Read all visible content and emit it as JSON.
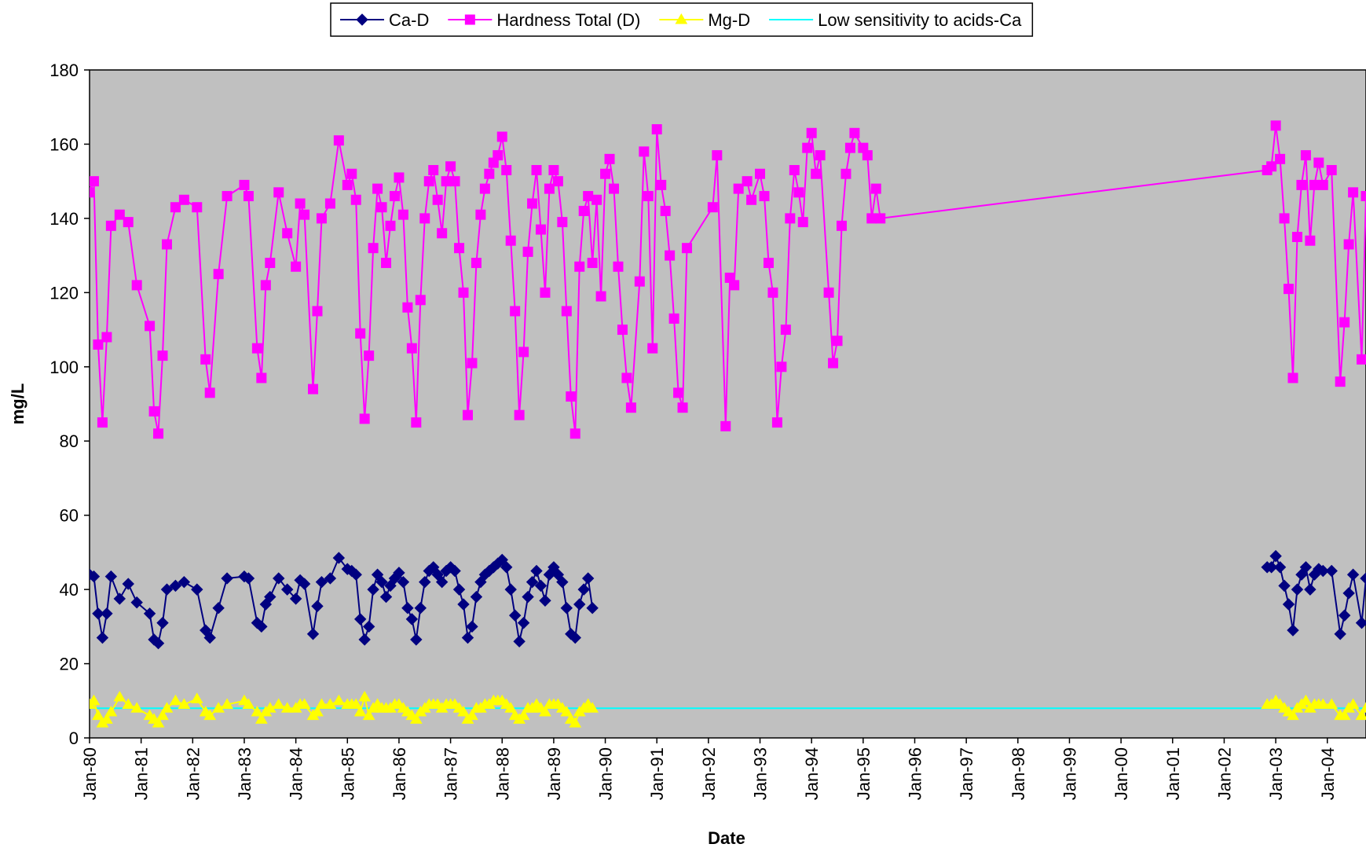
{
  "chart_data": {
    "type": "line",
    "x_label": "Date",
    "y_label": "mg/L",
    "x": [
      "1980-01",
      "1980-02",
      "1980-03",
      "1980-04",
      "1980-05",
      "1980-06",
      "1980-08",
      "1980-10",
      "1980-12",
      "1981-03",
      "1981-04",
      "1981-05",
      "1981-06",
      "1981-07",
      "1981-09",
      "1981-11",
      "1982-02",
      "1982-04",
      "1982-05",
      "1982-07",
      "1982-09",
      "1983-01",
      "1983-02",
      "1983-04",
      "1983-05",
      "1983-06",
      "1983-07",
      "1983-09",
      "1983-11",
      "1984-01",
      "1984-02",
      "1984-03",
      "1984-05",
      "1984-06",
      "1984-07",
      "1984-09",
      "1984-11",
      "1985-01",
      "1985-02",
      "1985-03",
      "1985-04",
      "1985-05",
      "1985-06",
      "1985-07",
      "1985-08",
      "1985-09",
      "1985-10",
      "1985-11",
      "1985-12",
      "1986-01",
      "1986-02",
      "1986-03",
      "1986-04",
      "1986-05",
      "1986-06",
      "1986-07",
      "1986-08",
      "1986-09",
      "1986-10",
      "1986-11",
      "1986-12",
      "1987-01",
      "1987-02",
      "1987-03",
      "1987-04",
      "1987-05",
      "1987-06",
      "1987-07",
      "1987-08",
      "1987-09",
      "1987-10",
      "1987-11",
      "1987-12",
      "1988-01",
      "1988-02",
      "1988-03",
      "1988-04",
      "1988-05",
      "1988-06",
      "1988-07",
      "1988-08",
      "1988-09",
      "1988-10",
      "1988-11",
      "1988-12",
      "1989-01",
      "1989-02",
      "1989-03",
      "1989-04",
      "1989-05",
      "1989-06",
      "1989-07",
      "1989-08",
      "1989-09",
      "1989-10",
      "1989-11",
      "1989-12",
      "1990-01",
      "1990-02",
      "1990-03",
      "1990-04",
      "1990-05",
      "1990-06",
      "1990-07",
      "1990-09",
      "1990-10",
      "1990-11",
      "1990-12",
      "1991-01",
      "1991-02",
      "1991-03",
      "1991-04",
      "1991-05",
      "1991-06",
      "1991-07",
      "1991-08",
      "1992-02",
      "1992-03",
      "1992-05",
      "1992-06",
      "1992-07",
      "1992-08",
      "1992-10",
      "1992-11",
      "1993-01",
      "1993-02",
      "1993-03",
      "1993-04",
      "1993-05",
      "1993-06",
      "1993-07",
      "1993-08",
      "1993-09",
      "1993-10",
      "1993-11",
      "1993-12",
      "1994-01",
      "1994-02",
      "1994-03",
      "1994-05",
      "1994-06",
      "1994-07",
      "1994-08",
      "1994-09",
      "1994-10",
      "1994-11",
      "1995-01",
      "1995-02",
      "1995-03",
      "1995-04",
      "1995-05",
      "2002-11",
      "2002-12",
      "2003-01",
      "2003-02",
      "2003-03",
      "2003-04",
      "2003-05",
      "2003-06",
      "2003-07",
      "2003-08",
      "2003-09",
      "2003-10",
      "2003-11",
      "2003-12",
      "2004-02",
      "2004-04",
      "2004-05",
      "2004-06",
      "2004-07",
      "2004-09",
      "2004-10"
    ],
    "series": [
      {
        "name": "Ca-D",
        "color": "#000080",
        "marker": "diamond",
        "values": [
          44,
          43.5,
          33.5,
          27,
          33.5,
          43.5,
          37.5,
          41.5,
          36.5,
          33.5,
          26.5,
          25.5,
          31,
          40,
          41,
          42,
          40,
          29,
          27,
          35,
          43,
          43.5,
          43,
          31,
          30,
          36,
          38,
          43,
          40,
          37.5,
          42.5,
          41.5,
          28,
          35.5,
          42,
          43,
          48.5,
          45.5,
          45,
          44,
          32,
          26.5,
          30,
          40,
          44,
          42,
          38,
          41,
          43,
          44.5,
          42,
          35,
          32,
          26.5,
          35,
          42,
          45,
          46,
          44,
          42,
          45,
          46,
          45,
          40,
          36,
          27,
          30,
          38,
          42,
          44,
          45,
          46,
          47,
          48,
          46,
          40,
          33,
          26,
          31,
          38,
          42,
          45,
          41,
          37,
          44,
          46,
          44,
          42,
          35,
          28,
          27,
          36,
          40,
          43,
          35,
          null,
          null,
          null,
          null,
          null,
          null,
          null,
          null,
          null,
          null,
          null,
          null,
          null,
          null,
          null,
          null,
          null,
          null,
          null,
          null,
          null,
          null,
          null,
          null,
          null,
          null,
          null,
          null,
          null,
          null,
          null,
          null,
          null,
          null,
          null,
          null,
          null,
          null,
          null,
          null,
          null,
          null,
          null,
          null,
          null,
          null,
          null,
          null,
          null,
          null,
          null,
          null,
          null,
          null,
          null,
          null,
          46,
          46,
          49,
          46,
          41,
          36,
          29,
          40,
          44,
          46,
          40,
          44,
          45.5,
          45,
          45,
          28,
          33,
          39,
          44,
          31,
          43
        ]
      },
      {
        "name": "Hardness Total (D)",
        "color": "#ff00ff",
        "marker": "square",
        "values": [
          147,
          150,
          106,
          85,
          108,
          138,
          141,
          139,
          122,
          111,
          88,
          82,
          103,
          133,
          143,
          145,
          143,
          102,
          93,
          125,
          146,
          149,
          146,
          105,
          97,
          122,
          128,
          147,
          136,
          127,
          144,
          141,
          94,
          115,
          140,
          144,
          161,
          149,
          152,
          145,
          109,
          86,
          103,
          132,
          148,
          143,
          128,
          138,
          146,
          151,
          141,
          116,
          105,
          85,
          118,
          140,
          150,
          153,
          145,
          136,
          150,
          154,
          150,
          132,
          120,
          87,
          101,
          128,
          141,
          148,
          152,
          155,
          157,
          162,
          153,
          134,
          115,
          87,
          104,
          131,
          144,
          153,
          137,
          120,
          148,
          153,
          150,
          139,
          115,
          92,
          82,
          127,
          142,
          146,
          128,
          145,
          119,
          152,
          156,
          148,
          127,
          110,
          97,
          89,
          123,
          158,
          146,
          105,
          164,
          149,
          142,
          130,
          113,
          93,
          89,
          132,
          143,
          157,
          84,
          124,
          122,
          148,
          150,
          145,
          152,
          146,
          128,
          120,
          85,
          100,
          110,
          140,
          153,
          147,
          139,
          159,
          163,
          152,
          157,
          120,
          101,
          107,
          138,
          152,
          159,
          163,
          159,
          157,
          140,
          148,
          140,
          153,
          154,
          165,
          156,
          140,
          121,
          97,
          135,
          149,
          157,
          134,
          149,
          155,
          149,
          153,
          96,
          112,
          133,
          147,
          102,
          146
        ]
      },
      {
        "name": "Mg-D",
        "color": "#ffff00",
        "marker": "triangle",
        "values": [
          9,
          10,
          6,
          4,
          5,
          7,
          11,
          9,
          8,
          6,
          5,
          4,
          6,
          8,
          10,
          9,
          10.5,
          7,
          6,
          8,
          9,
          10,
          9,
          7,
          5,
          7,
          8,
          9,
          8,
          8,
          9,
          9,
          6,
          7,
          9,
          9,
          10,
          9,
          9,
          9,
          7,
          11,
          6,
          8,
          9,
          8,
          8,
          8,
          9,
          9,
          8,
          7,
          6,
          5,
          7,
          8,
          9,
          9,
          9,
          8,
          9,
          9,
          9,
          8,
          7,
          5,
          6,
          8,
          8,
          9,
          9,
          10,
          10,
          10,
          9,
          8,
          6,
          5,
          6,
          8,
          8,
          9,
          8,
          7,
          9,
          9,
          9,
          8,
          7,
          5,
          4,
          7,
          8,
          9,
          8,
          null,
          null,
          null,
          null,
          null,
          null,
          null,
          null,
          null,
          null,
          null,
          null,
          null,
          null,
          null,
          null,
          null,
          null,
          null,
          null,
          null,
          null,
          null,
          null,
          null,
          null,
          null,
          null,
          null,
          null,
          null,
          null,
          null,
          null,
          null,
          null,
          null,
          null,
          null,
          null,
          null,
          null,
          null,
          null,
          null,
          null,
          null,
          null,
          null,
          null,
          null,
          null,
          null,
          null,
          null,
          null,
          9,
          9,
          10,
          9,
          8,
          7,
          6,
          8,
          9,
          10,
          8,
          9,
          9,
          9,
          9,
          6,
          6,
          8,
          9,
          6,
          8
        ]
      },
      {
        "name": "Low sensitivity to acids-Ca",
        "color": "#00ffff",
        "marker": "none",
        "x": [
          "1980-01",
          "2004-10"
        ],
        "values": [
          8,
          8
        ]
      }
    ],
    "xlim": [
      "1980-01",
      "2004-10"
    ],
    "xticks": [
      {
        "value": "1980-01",
        "label": "Jan-80"
      },
      {
        "value": "1981-01",
        "label": "Jan-81"
      },
      {
        "value": "1982-01",
        "label": "Jan-82"
      },
      {
        "value": "1983-01",
        "label": "Jan-83"
      },
      {
        "value": "1984-01",
        "label": "Jan-84"
      },
      {
        "value": "1985-01",
        "label": "Jan-85"
      },
      {
        "value": "1986-01",
        "label": "Jan-86"
      },
      {
        "value": "1987-01",
        "label": "Jan-87"
      },
      {
        "value": "1988-01",
        "label": "Jan-88"
      },
      {
        "value": "1989-01",
        "label": "Jan-89"
      },
      {
        "value": "1990-01",
        "label": "Jan-90"
      },
      {
        "value": "1991-01",
        "label": "Jan-91"
      },
      {
        "value": "1992-01",
        "label": "Jan-92"
      },
      {
        "value": "1993-01",
        "label": "Jan-93"
      },
      {
        "value": "1994-01",
        "label": "Jan-94"
      },
      {
        "value": "1995-01",
        "label": "Jan-95"
      },
      {
        "value": "1996-01",
        "label": "Jan-96"
      },
      {
        "value": "1997-01",
        "label": "Jan-97"
      },
      {
        "value": "1998-01",
        "label": "Jan-98"
      },
      {
        "value": "1999-01",
        "label": "Jan-99"
      },
      {
        "value": "2000-01",
        "label": "Jan-00"
      },
      {
        "value": "2001-01",
        "label": "Jan-01"
      },
      {
        "value": "2002-01",
        "label": "Jan-02"
      },
      {
        "value": "2003-01",
        "label": "Jan-03"
      },
      {
        "value": "2004-01",
        "label": "Jan-04"
      }
    ],
    "ylim": [
      0,
      180
    ],
    "yticks": [
      0,
      20,
      40,
      60,
      80,
      100,
      120,
      140,
      160,
      180
    ],
    "plot_background": "#c0c0c0",
    "legend": "top"
  }
}
